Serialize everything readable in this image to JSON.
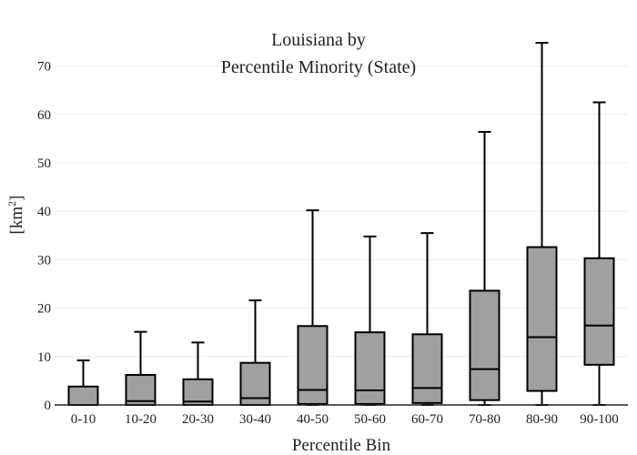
{
  "chart_data": {
    "type": "box",
    "title_line1": "Louisiana  by",
    "title_line2": "Percentile Minority (State)",
    "xlabel": "Percentile Bin",
    "ylabel_base": "[km",
    "ylabel_sup": "2",
    "ylabel_close": "]",
    "ylim": [
      0,
      78
    ],
    "yticks": [
      0,
      10,
      20,
      30,
      40,
      50,
      60,
      70
    ],
    "grid": true,
    "box_color": "#a0a0a0",
    "categories": [
      "0-10",
      "10-20",
      "20-30",
      "30-40",
      "40-50",
      "50-60",
      "60-70",
      "70-80",
      "80-90",
      "90-100"
    ],
    "boxes": [
      {
        "min": 0,
        "q1": 0,
        "median": 0,
        "q3": 3.8,
        "max": 9.2
      },
      {
        "min": 0,
        "q1": 0,
        "median": 0.8,
        "q3": 6.2,
        "max": 15.1
      },
      {
        "min": 0,
        "q1": 0,
        "median": 0.7,
        "q3": 5.3,
        "max": 12.9
      },
      {
        "min": 0,
        "q1": 0,
        "median": 1.4,
        "q3": 8.7,
        "max": 21.6
      },
      {
        "min": 0,
        "q1": 0.2,
        "median": 3.1,
        "q3": 16.3,
        "max": 40.2
      },
      {
        "min": 0,
        "q1": 0.2,
        "median": 3.0,
        "q3": 15.0,
        "max": 34.8
      },
      {
        "min": 0,
        "q1": 0.4,
        "median": 3.5,
        "q3": 14.6,
        "max": 35.5
      },
      {
        "min": 0,
        "q1": 1.0,
        "median": 7.4,
        "q3": 23.6,
        "max": 56.4
      },
      {
        "min": 0,
        "q1": 2.9,
        "median": 14.0,
        "q3": 32.6,
        "max": 74.8
      },
      {
        "min": 0,
        "q1": 8.3,
        "median": 16.4,
        "q3": 30.3,
        "max": 62.5
      }
    ]
  }
}
